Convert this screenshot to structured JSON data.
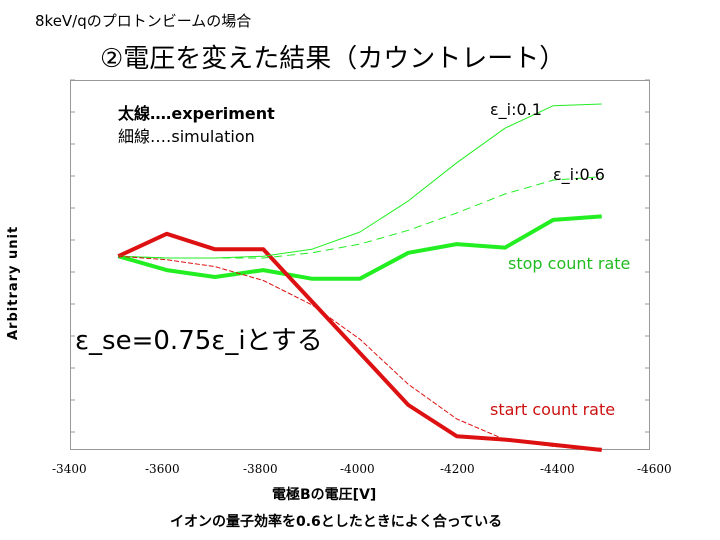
{
  "header": {
    "note": "8keV/qのプロトンビームの場合",
    "title": "②電圧を変えた結果（カウントレート）"
  },
  "legend": {
    "thick": "太線‥‥experiment",
    "thin": "細線‥‥simulation"
  },
  "annotation": "ε_se=0.75ε_iとする",
  "footnote": "イオンの量子効率を0.6としたときによく合っている",
  "colors": {
    "green": "#22ee22",
    "red": "#dd1111",
    "green_text": "#22bb22",
    "red_text": "#cc1111"
  },
  "chart_data": {
    "type": "line",
    "title": "",
    "xlabel": "電極Bの電圧[V]",
    "ylabel": "Arbitrary unit",
    "xlim": [
      -3400,
      -4600
    ],
    "ylim": [
      0,
      10
    ],
    "x_ticks": [
      "-3400",
      "-3600",
      "-3800",
      "-4000",
      "-4200",
      "-4400",
      "-4600"
    ],
    "x_tick_values": [
      -3400,
      -3600,
      -3800,
      -4000,
      -4200,
      -4400,
      -4600
    ],
    "grid": false,
    "series": [
      {
        "name": "stop count rate (experiment)",
        "label": "stop count rate",
        "style": "thick",
        "color": "green",
        "x": [
          -3500,
          -3600,
          -3700,
          -3800,
          -3900,
          -4000,
          -4100,
          -4200,
          -4300,
          -4400,
          -4500
        ],
        "y": [
          5.6,
          5.2,
          5.0,
          5.2,
          4.95,
          4.95,
          5.7,
          5.95,
          5.85,
          6.65,
          6.75
        ]
      },
      {
        "name": "start count rate (experiment)",
        "label": "start count rate",
        "style": "thick",
        "color": "red",
        "x": [
          -3500,
          -3600,
          -3700,
          -3800,
          -3900,
          -4000,
          -4100,
          -4200,
          -4300,
          -4400,
          -4500
        ],
        "y": [
          5.6,
          6.25,
          5.8,
          5.8,
          4.3,
          2.8,
          1.3,
          0.4,
          0.3,
          0.15,
          0.0
        ]
      },
      {
        "name": "simulation ε_i:0.1",
        "label": "ε_i:0.1",
        "style": "thin",
        "color": "green",
        "x": [
          -3500,
          -3600,
          -3700,
          -3800,
          -3900,
          -4000,
          -4100,
          -4200,
          -4300,
          -4400,
          -4500
        ],
        "y": [
          5.6,
          5.55,
          5.55,
          5.6,
          5.8,
          6.3,
          7.2,
          8.3,
          9.3,
          9.95,
          10.0
        ]
      },
      {
        "name": "simulation ε_i:0.6",
        "label": "ε_i:0.6",
        "style": "thin-dashed",
        "color": "green",
        "x": [
          -3500,
          -3600,
          -3700,
          -3800,
          -3900,
          -4000,
          -4100,
          -4200,
          -4300,
          -4400,
          -4500
        ],
        "y": [
          5.6,
          5.55,
          5.55,
          5.55,
          5.7,
          5.95,
          6.35,
          6.85,
          7.4,
          7.8,
          7.9
        ]
      },
      {
        "name": "start count rate (simulation)",
        "label": "",
        "style": "thin",
        "color": "red",
        "x": [
          -3500,
          -3600,
          -3700,
          -3800,
          -3900,
          -4000,
          -4100,
          -4200,
          -4300,
          -4400,
          -4500
        ],
        "y": [
          5.6,
          5.5,
          5.3,
          4.9,
          4.2,
          3.2,
          1.9,
          0.9,
          0.3,
          0.1,
          0.05
        ]
      }
    ]
  }
}
